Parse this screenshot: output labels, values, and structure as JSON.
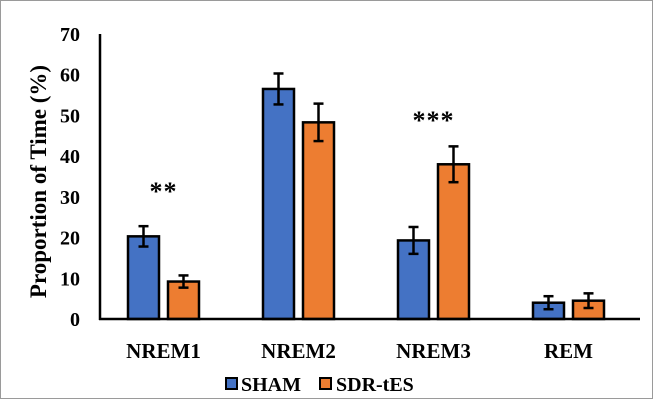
{
  "chart_data": {
    "type": "bar",
    "title": "",
    "xlabel": "",
    "ylabel": "Proportion of Time (%)",
    "ylim": [
      0,
      70
    ],
    "yticks": [
      "0",
      "10",
      "20",
      "30",
      "40",
      "50",
      "60",
      "70"
    ],
    "categories": [
      "NREM1",
      "NREM2",
      "NREM3",
      "REM"
    ],
    "series": [
      {
        "name": "SHAM",
        "color": "#4472c4",
        "values": [
          20.3,
          56.5,
          19.3,
          4.0
        ],
        "errors": [
          2.5,
          3.8,
          3.3,
          1.6
        ]
      },
      {
        "name": "SDR-tES",
        "color": "#ed7d31",
        "values": [
          9.2,
          48.3,
          38.0,
          4.5
        ],
        "errors": [
          1.5,
          4.6,
          4.4,
          1.8
        ]
      }
    ],
    "annotations": [
      {
        "category": "NREM1",
        "text": "**"
      },
      {
        "category": "NREM3",
        "text": "***"
      }
    ],
    "grid": false,
    "legend_position": "bottom"
  }
}
